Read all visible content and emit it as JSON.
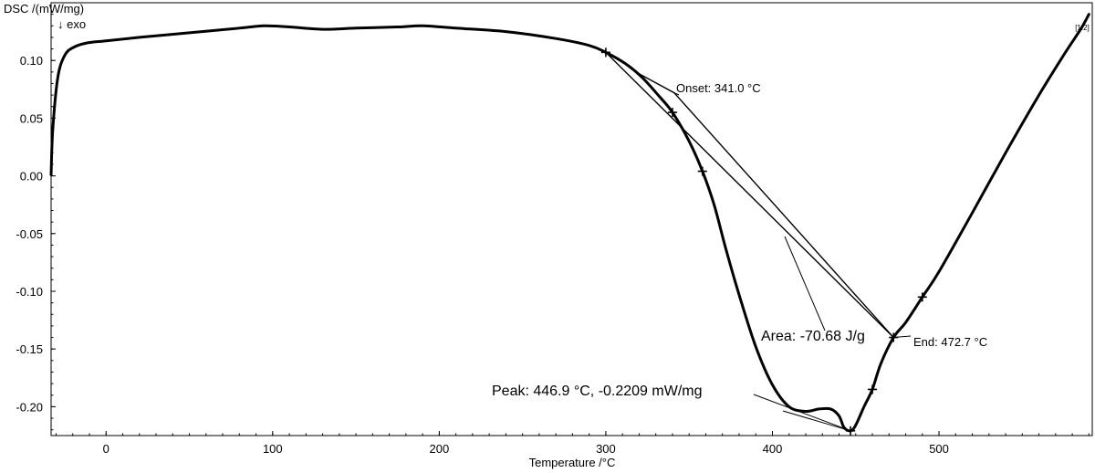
{
  "chart_data": {
    "type": "line",
    "ylabel": "DSC /(mW/mg)",
    "ylabel_sub": "↓  exo",
    "xlabel": "Temperature /°C",
    "xlim": [
      -33,
      592
    ],
    "ylim": [
      -0.225,
      0.15
    ],
    "x_ticks": [
      0,
      100,
      200,
      300,
      400,
      500
    ],
    "x_tick_labels": [
      "0",
      "100",
      "200",
      "300",
      "400",
      "500"
    ],
    "y_ticks": [
      0.1,
      0.05,
      0.0,
      -0.05,
      -0.1,
      -0.15,
      -0.2
    ],
    "y_tick_labels": [
      "0.10",
      "0.05",
      "0.00",
      "-0.05",
      "-0.10",
      "-0.15",
      "-0.20"
    ],
    "grid": false,
    "series": [
      {
        "name": "[1.2]",
        "x": [
          -33,
          -32,
          -29,
          -25,
          -20,
          -12,
          0,
          20,
          50,
          80,
          95,
          110,
          130,
          150,
          175,
          190,
          210,
          240,
          270,
          290,
          300,
          312,
          322,
          332,
          340,
          350,
          358,
          365,
          372,
          380,
          390,
          400,
          410,
          420,
          428,
          435,
          440,
          443,
          446.9,
          450,
          455,
          460,
          465,
          472.7,
          480,
          490,
          500,
          520,
          540,
          560,
          575,
          585,
          590
        ],
        "y": [
          0.001,
          0.04,
          0.085,
          0.104,
          0.111,
          0.115,
          0.117,
          0.12,
          0.124,
          0.128,
          0.13,
          0.129,
          0.127,
          0.128,
          0.129,
          0.13,
          0.128,
          0.125,
          0.119,
          0.113,
          0.107,
          0.097,
          0.085,
          0.069,
          0.055,
          0.03,
          0.004,
          -0.025,
          -0.063,
          -0.103,
          -0.148,
          -0.181,
          -0.2,
          -0.204,
          -0.202,
          -0.202,
          -0.208,
          -0.218,
          -0.2209,
          -0.216,
          -0.2,
          -0.185,
          -0.163,
          -0.14,
          -0.127,
          -0.105,
          -0.083,
          -0.032,
          0.02,
          0.07,
          0.105,
          0.127,
          0.14
        ]
      }
    ],
    "markers": [
      {
        "x": 300,
        "y": 0.107
      },
      {
        "x": 340,
        "y": 0.055
      },
      {
        "x": 358,
        "y": 0.004
      },
      {
        "x": 446.9,
        "y": -0.2209
      },
      {
        "x": 460,
        "y": -0.185
      },
      {
        "x": 472.7,
        "y": -0.14
      },
      {
        "x": 490,
        "y": -0.105
      }
    ],
    "tangent_line": {
      "x": [
        318,
        341,
        472.7
      ],
      "y": [
        0.09,
        0.072,
        -0.14
      ]
    },
    "area_baseline": {
      "x": [
        300,
        472.7
      ],
      "y": [
        0.107,
        -0.14
      ]
    },
    "annotations": {
      "onset": "Onset: 341.0 °C",
      "end": "End: 472.7 °C",
      "area": "Area: -70.68 J/g",
      "peak": "Peak: 446.9 °C, -0.2209 mW/mg",
      "curve_id": "[1.2]"
    },
    "colors": {
      "line": "#000000",
      "background": "#ffffff"
    }
  }
}
